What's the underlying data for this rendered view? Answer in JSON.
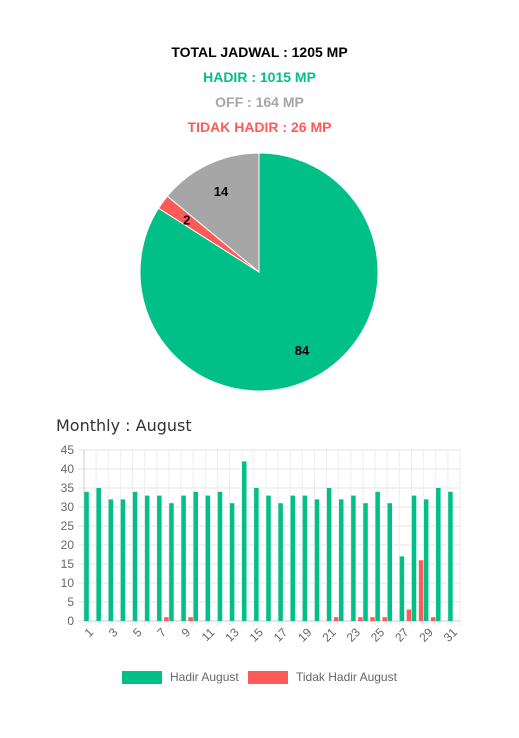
{
  "summary": {
    "total": "TOTAL JADWAL : 1205 MP",
    "hadir": "HADIR : 1015 MP",
    "off": "OFF : 164 MP",
    "tidak_hadir": "TIDAK HADIR : 26 MP"
  },
  "colors": {
    "total": "#000000",
    "hadir": "#00bf87",
    "off": "#a6a6a6",
    "tidak_hadir": "#ff5a5a"
  },
  "monthly": {
    "title": "Monthly : August"
  },
  "chart_data": [
    {
      "type": "pie",
      "slices": [
        {
          "label": "84",
          "value": 84,
          "color": "#00bf87"
        },
        {
          "label": "2",
          "value": 2,
          "color": "#ff5a5a"
        },
        {
          "label": "14",
          "value": 14,
          "color": "#a6a6a6"
        }
      ]
    },
    {
      "type": "bar",
      "title": "Monthly : August",
      "categories": [
        "1",
        "2",
        "3",
        "4",
        "5",
        "6",
        "7",
        "8",
        "9",
        "10",
        "11",
        "12",
        "13",
        "14",
        "15",
        "16",
        "17",
        "18",
        "19",
        "20",
        "21",
        "22",
        "23",
        "24",
        "25",
        "26",
        "27",
        "28",
        "29",
        "30",
        "31"
      ],
      "x_tick_labels": [
        "1",
        "3",
        "5",
        "7",
        "9",
        "11",
        "13",
        "15",
        "17",
        "19",
        "21",
        "23",
        "25",
        "27",
        "29",
        "31"
      ],
      "ylim": [
        0,
        45
      ],
      "y_ticks": [
        0,
        5,
        10,
        15,
        20,
        25,
        30,
        35,
        40,
        45
      ],
      "grid": true,
      "legend_position": "bottom",
      "series": [
        {
          "name": "Hadir August",
          "color": "#00bf87",
          "values": [
            34,
            35,
            32,
            32,
            34,
            33,
            33,
            31,
            33,
            34,
            33,
            34,
            31,
            42,
            35,
            33,
            31,
            33,
            33,
            32,
            35,
            32,
            33,
            31,
            34,
            31,
            17,
            33,
            32,
            35,
            34
          ]
        },
        {
          "name": "Tidak Hadir August",
          "color": "#ff5a5a",
          "values": [
            0,
            0,
            0,
            0,
            0,
            0,
            1,
            0,
            1,
            0,
            0,
            0,
            0,
            0,
            0,
            0,
            0,
            0,
            0,
            0,
            1,
            0,
            1,
            1,
            1,
            0,
            3,
            16,
            1,
            0,
            0
          ]
        }
      ]
    }
  ]
}
